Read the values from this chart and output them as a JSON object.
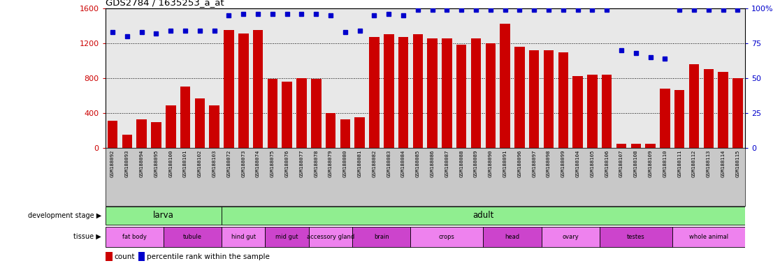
{
  "title": "GDS2784 / 1635253_a_at",
  "samples": [
    "GSM188092",
    "GSM188093",
    "GSM188094",
    "GSM188095",
    "GSM188100",
    "GSM188101",
    "GSM188102",
    "GSM188103",
    "GSM188072",
    "GSM188073",
    "GSM188074",
    "GSM188075",
    "GSM188076",
    "GSM188077",
    "GSM188078",
    "GSM188079",
    "GSM188080",
    "GSM188081",
    "GSM188082",
    "GSM188083",
    "GSM188084",
    "GSM188085",
    "GSM188086",
    "GSM188087",
    "GSM188088",
    "GSM188089",
    "GSM188090",
    "GSM188091",
    "GSM188096",
    "GSM188097",
    "GSM188098",
    "GSM188099",
    "GSM188104",
    "GSM188105",
    "GSM188106",
    "GSM188107",
    "GSM188108",
    "GSM188109",
    "GSM188110",
    "GSM188111",
    "GSM188112",
    "GSM188113",
    "GSM188114",
    "GSM188115"
  ],
  "counts": [
    310,
    150,
    330,
    295,
    490,
    700,
    570,
    490,
    1350,
    1310,
    1350,
    790,
    760,
    795,
    790,
    395,
    330,
    350,
    1270,
    1300,
    1270,
    1300,
    1250,
    1250,
    1180,
    1250,
    1200,
    1420,
    1160,
    1120,
    1120,
    1090,
    820,
    840,
    840,
    50,
    50,
    50,
    680,
    660,
    960,
    900,
    870,
    800
  ],
  "percentiles": [
    83,
    80,
    83,
    82,
    84,
    84,
    84,
    84,
    95,
    96,
    96,
    96,
    96,
    96,
    96,
    95,
    83,
    84,
    95,
    96,
    95,
    99,
    99,
    99,
    99,
    99,
    99,
    99,
    99,
    99,
    99,
    99,
    99,
    99,
    99,
    70,
    68,
    65,
    64,
    99,
    99,
    99,
    99,
    99
  ],
  "ylim_left": [
    0,
    1600
  ],
  "ylim_right": [
    0,
    100
  ],
  "yticks_left": [
    0,
    400,
    800,
    1200,
    1600
  ],
  "yticks_right": [
    0,
    25,
    50,
    75,
    100
  ],
  "bar_color": "#cc0000",
  "dot_color": "#0000cc",
  "bg_color": "#e8e8e8",
  "left_axis_color": "#cc0000",
  "right_axis_color": "#0000cc",
  "grid_color": "#000000",
  "development_stages": [
    {
      "label": "larva",
      "start": 0,
      "end": 8
    },
    {
      "label": "adult",
      "start": 8,
      "end": 44
    }
  ],
  "stage_color": "#90ee90",
  "tissues": [
    {
      "label": "fat body",
      "start": 0,
      "end": 4,
      "alt": false
    },
    {
      "label": "tubule",
      "start": 4,
      "end": 8,
      "alt": true
    },
    {
      "label": "hind gut",
      "start": 8,
      "end": 11,
      "alt": false
    },
    {
      "label": "mid gut",
      "start": 11,
      "end": 14,
      "alt": true
    },
    {
      "label": "accessory gland",
      "start": 14,
      "end": 17,
      "alt": false
    },
    {
      "label": "brain",
      "start": 17,
      "end": 21,
      "alt": true
    },
    {
      "label": "crops",
      "start": 21,
      "end": 26,
      "alt": false
    },
    {
      "label": "head",
      "start": 26,
      "end": 30,
      "alt": true
    },
    {
      "label": "ovary",
      "start": 30,
      "end": 34,
      "alt": false
    },
    {
      "label": "testes",
      "start": 34,
      "end": 39,
      "alt": true
    },
    {
      "label": "whole animal",
      "start": 39,
      "end": 44,
      "alt": false
    }
  ],
  "tissue_color1": "#ee82ee",
  "tissue_color2": "#cc44cc",
  "label_area_color": "#c8c8c8"
}
